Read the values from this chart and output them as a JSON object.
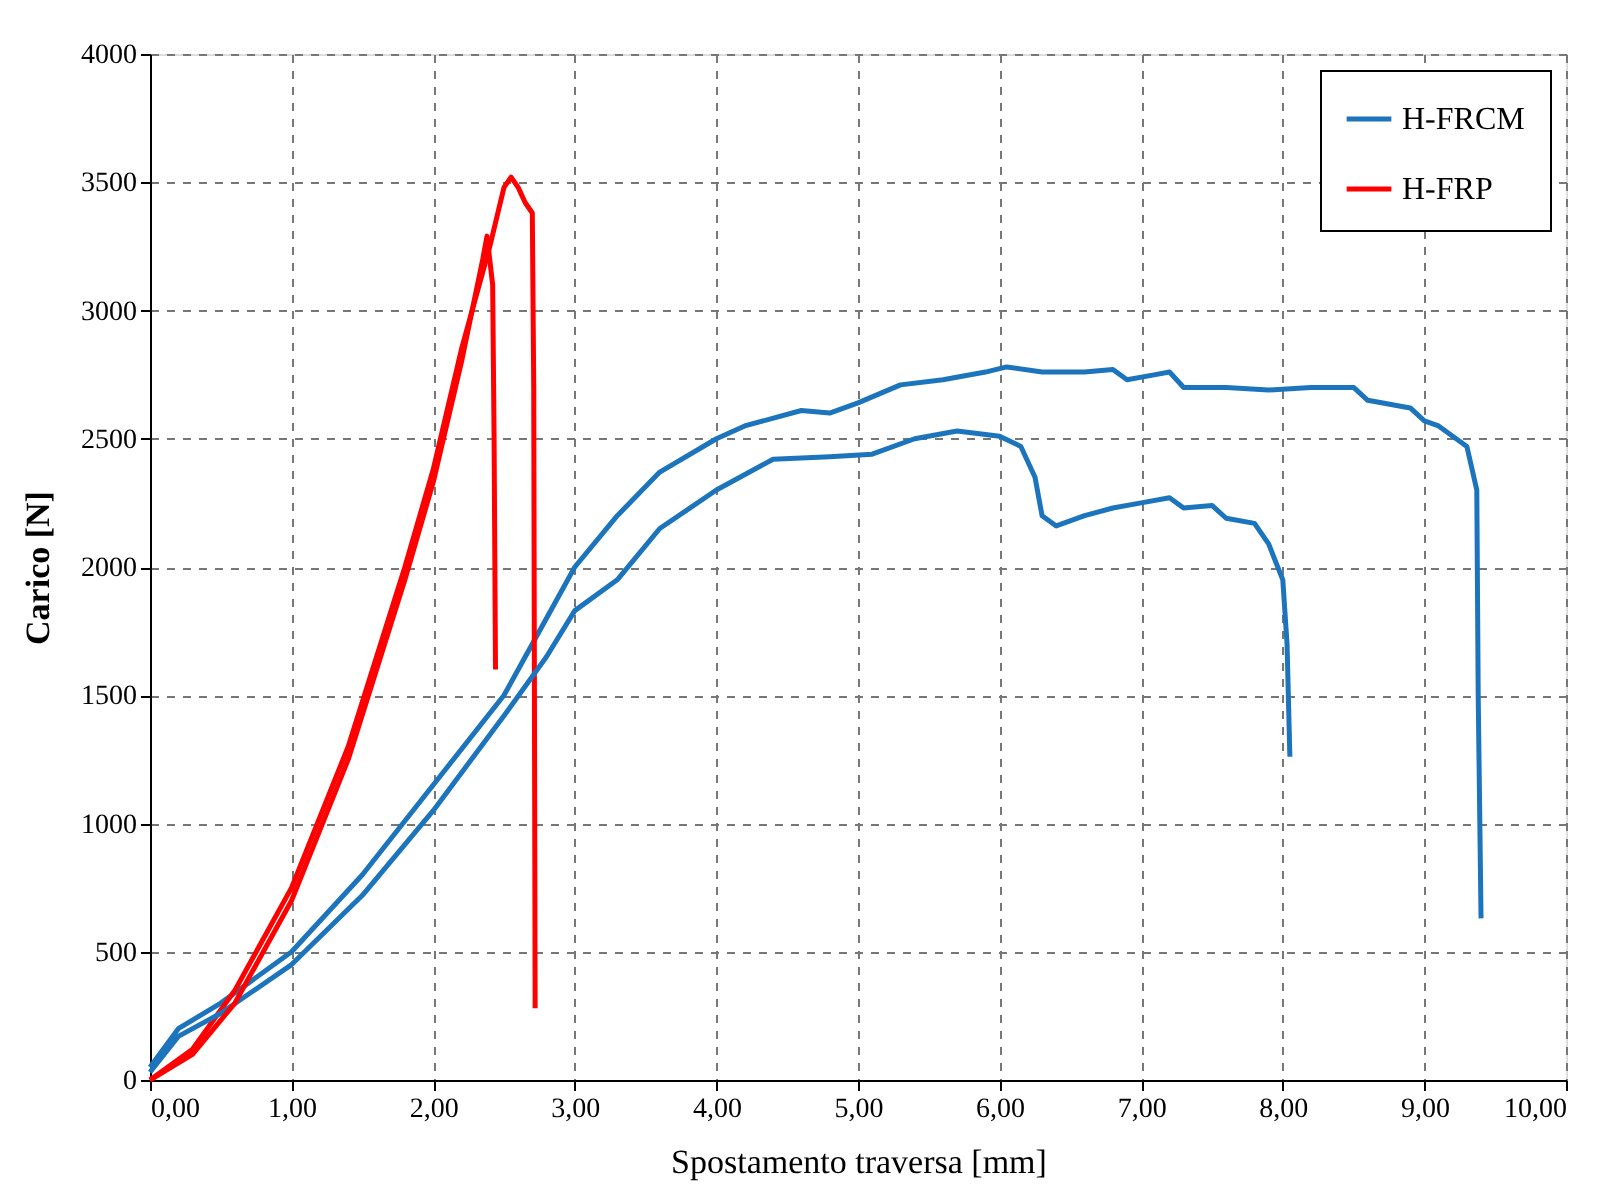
{
  "chart_data": {
    "type": "line",
    "xlabel": "Spostamento traversa [mm]",
    "ylabel": "Carico [N]",
    "xlim": [
      0,
      10
    ],
    "ylim": [
      0,
      4000
    ],
    "xticks": [
      {
        "value": 0,
        "label": "0,00"
      },
      {
        "value": 1,
        "label": "1,00"
      },
      {
        "value": 2,
        "label": "2,00"
      },
      {
        "value": 3,
        "label": "3,00"
      },
      {
        "value": 4,
        "label": "4,00"
      },
      {
        "value": 5,
        "label": "5,00"
      },
      {
        "value": 6,
        "label": "6,00"
      },
      {
        "value": 7,
        "label": "7,00"
      },
      {
        "value": 8,
        "label": "8,00"
      },
      {
        "value": 9,
        "label": "9,00"
      },
      {
        "value": 10,
        "label": "10,00"
      }
    ],
    "yticks": [
      0,
      500,
      1000,
      1500,
      2000,
      2500,
      3000,
      3500,
      4000
    ],
    "grid": true,
    "legend": "top right",
    "marker": "none",
    "line_style": "solid",
    "series": [
      {
        "name": "H-FRCM",
        "color": "#1c75bc",
        "x": [
          0,
          0.2,
          0.5,
          1,
          1.5,
          2,
          2.5,
          3,
          3.3,
          3.6,
          4,
          4.2,
          4.6,
          4.8,
          5,
          5.3,
          5.6,
          5.9,
          6.05,
          6.3,
          6.6,
          6.8,
          6.9,
          7.1,
          7.2,
          7.3,
          7.6,
          7.9,
          8.2,
          8.5,
          8.6,
          8.9,
          9.0,
          9.1,
          9.3,
          9.37,
          9.38,
          9.4
        ],
        "values": [
          50,
          200,
          300,
          500,
          800,
          1150,
          1500,
          2000,
          2200,
          2370,
          2500,
          2550,
          2610,
          2600,
          2640,
          2710,
          2730,
          2760,
          2780,
          2760,
          2760,
          2770,
          2730,
          2750,
          2760,
          2700,
          2700,
          2690,
          2700,
          2700,
          2650,
          2620,
          2570,
          2550,
          2470,
          2300,
          1500,
          630
        ]
      },
      {
        "name": "H-FRP",
        "color": "#ff0000",
        "x": [
          0,
          0.3,
          0.6,
          1,
          1.4,
          1.8,
          2.0,
          2.2,
          2.4,
          2.5,
          2.55,
          2.6,
          2.65,
          2.7,
          2.71,
          2.72
        ],
        "values": [
          0,
          120,
          350,
          750,
          1300,
          2000,
          2380,
          2850,
          3250,
          3480,
          3520,
          3480,
          3420,
          3380,
          2700,
          280
        ]
      },
      {
        "color": "#1c75bc",
        "x": [
          0,
          0.2,
          0.5,
          1,
          1.5,
          2,
          2.5,
          2.8,
          3,
          3.3,
          3.6,
          4,
          4.4,
          4.8,
          5.1,
          5.4,
          5.7,
          6,
          6.15,
          6.25,
          6.3,
          6.4,
          6.6,
          6.8,
          7.0,
          7.2,
          7.3,
          7.5,
          7.6,
          7.8,
          7.9,
          8.0,
          8.03,
          8.05
        ],
        "values": [
          30,
          170,
          260,
          450,
          720,
          1050,
          1420,
          1650,
          1830,
          1950,
          2150,
          2300,
          2420,
          2430,
          2440,
          2500,
          2530,
          2510,
          2470,
          2350,
          2200,
          2160,
          2200,
          2230,
          2250,
          2270,
          2230,
          2240,
          2190,
          2170,
          2090,
          1950,
          1700,
          1260
        ]
      },
      {
        "color": "#ff0000",
        "x": [
          0,
          0.3,
          0.6,
          1,
          1.4,
          1.8,
          2.0,
          2.2,
          2.35,
          2.38,
          2.42,
          2.43,
          2.44
        ],
        "values": [
          0,
          100,
          300,
          700,
          1250,
          1950,
          2330,
          2800,
          3200,
          3290,
          3100,
          2500,
          1600
        ]
      }
    ]
  }
}
